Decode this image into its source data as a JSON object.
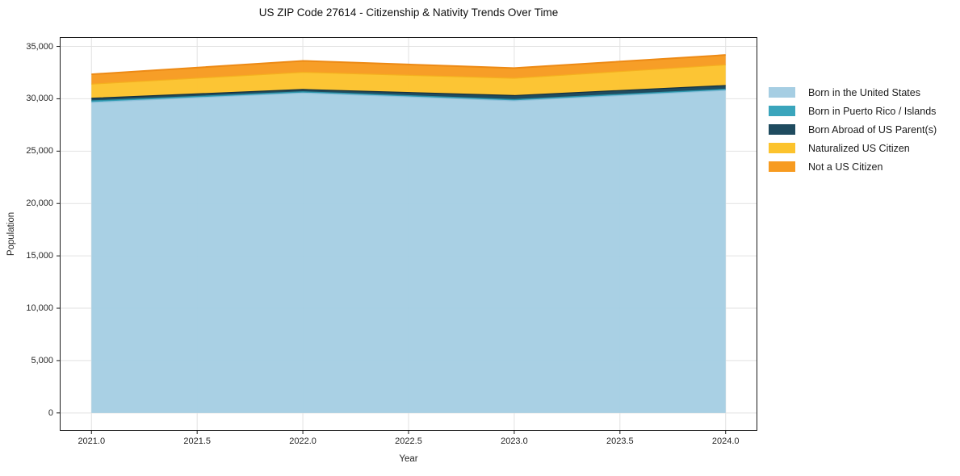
{
  "title": "US ZIP Code 27614 - Citizenship & Nativity Trends Over Time",
  "chart_data": {
    "type": "area",
    "stacked": true,
    "title": "US ZIP Code 27614 - Citizenship & Nativity Trends Over Time",
    "xlabel": "Year",
    "ylabel": "Population",
    "x": [
      2021,
      2022,
      2023,
      2024
    ],
    "series": [
      {
        "name": "Born in the United States",
        "color": "#a6cee3",
        "edge": "#8fc0da",
        "values": [
          29650,
          30550,
          29800,
          30800
        ]
      },
      {
        "name": "Born in Puerto Rico / Islands",
        "color": "#3aa5bc",
        "edge": "#2b91a6",
        "values": [
          150,
          120,
          130,
          120
        ]
      },
      {
        "name": "Born Abroad of US Parent(s)",
        "color": "#1f4b5f",
        "edge": "#14303f",
        "values": [
          250,
          220,
          380,
          350
        ]
      },
      {
        "name": "Naturalized US Citizen",
        "color": "#fcc32d",
        "edge": "#f5b01f",
        "values": [
          1350,
          1640,
          1650,
          1970
        ]
      },
      {
        "name": "Not a US Citizen",
        "color": "#f79b20",
        "edge": "#ed8a15",
        "values": [
          940,
          1090,
          970,
          940
        ]
      }
    ],
    "totals": [
      32340,
      33620,
      32930,
      34180
    ],
    "xlim": [
      2020.85,
      2024.15
    ],
    "ylim": [
      -1709,
      35889
    ],
    "xticks": [
      2021.0,
      2021.5,
      2022.0,
      2022.5,
      2023.0,
      2023.5,
      2024.0
    ],
    "xtick_labels": [
      "2021.0",
      "2021.5",
      "2022.0",
      "2022.5",
      "2023.0",
      "2023.5",
      "2024.0"
    ],
    "yticks": [
      0,
      5000,
      10000,
      15000,
      20000,
      25000,
      30000,
      35000
    ],
    "ytick_labels": [
      "0",
      "5,000",
      "10,000",
      "15,000",
      "20,000",
      "25,000",
      "30,000",
      "35,000"
    ],
    "grid": true,
    "legend_position": "right",
    "grid_color": "#e2e2e2",
    "spine_color": "#1a1a1a"
  }
}
